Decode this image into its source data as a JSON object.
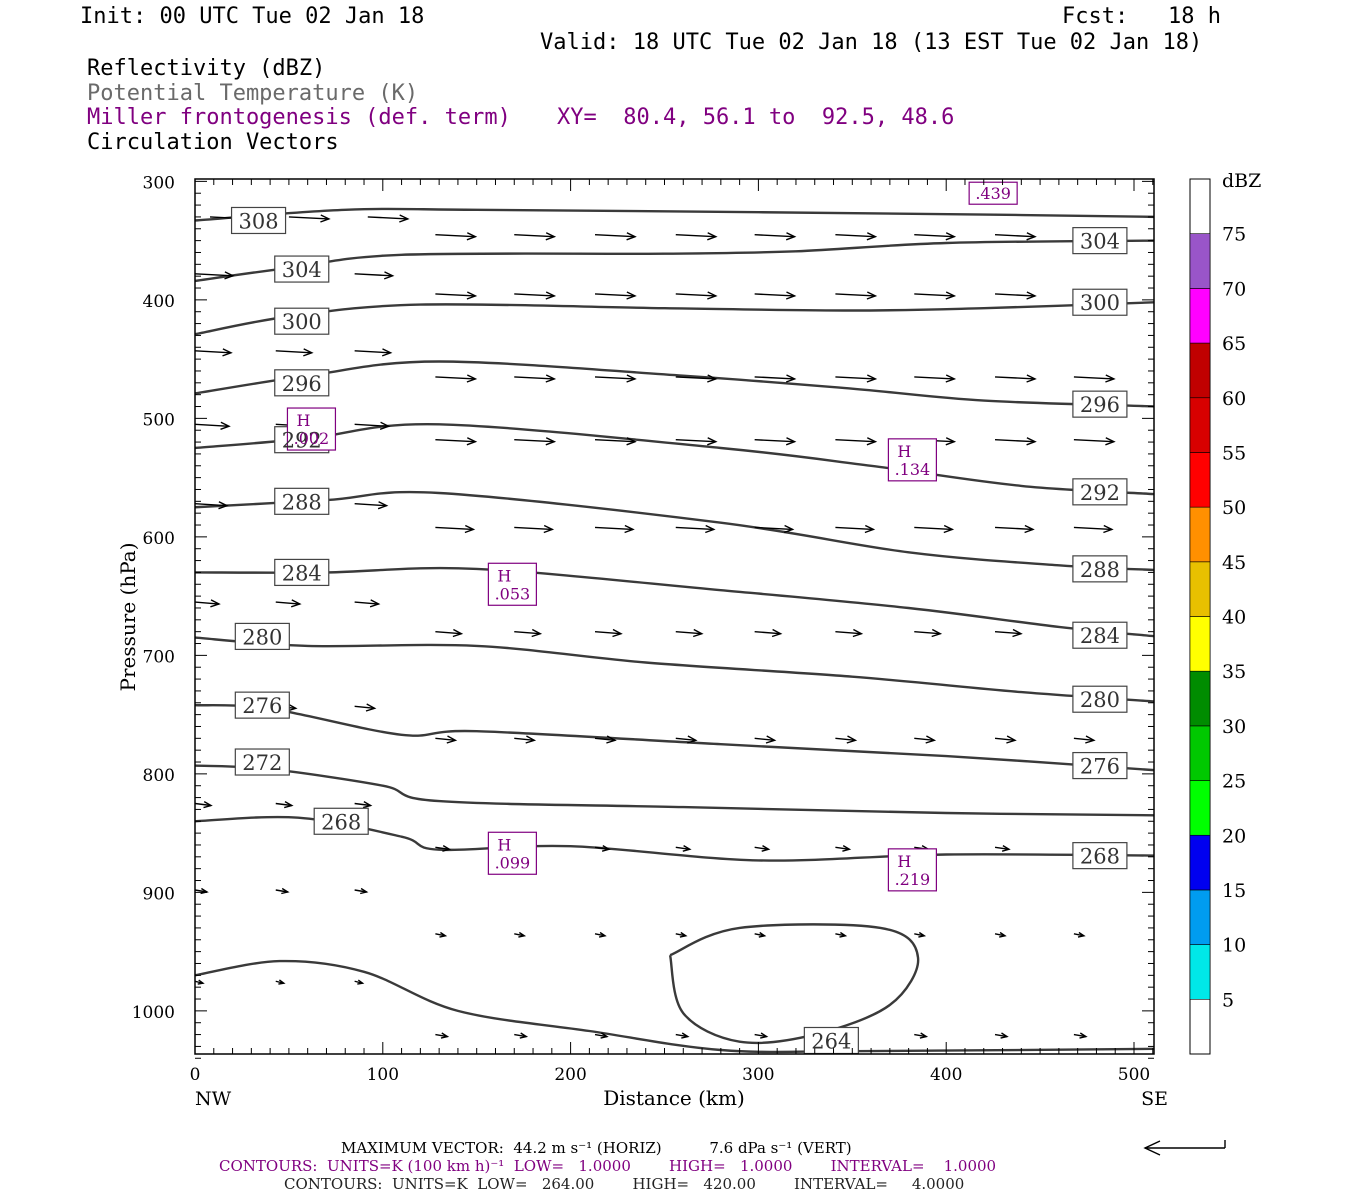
{
  "header": {
    "init": "Init: 00 UTC Tue 02 Jan 18",
    "fcst": "Fcst:   18 h",
    "valid": "Valid: 18 UTC Tue 02 Jan 18 (13 EST Tue 02 Jan 18)",
    "field_1": "Reflectivity (dBZ)",
    "field_2": "Potential Temperature (K)",
    "field_3": "Miller frontogenesis (def. term)",
    "xy": "XY=  80.4, 56.1 to  92.5, 48.6",
    "field_4": "Circulation Vectors"
  },
  "colors": {
    "theta": "#3a3a3a",
    "fronto": "#800080",
    "vector": "#000000"
  },
  "chart_data": {
    "type": "cross-section",
    "xlabel": "Distance (km)",
    "ylabel": "Pressure (hPa)",
    "xlim": [
      0,
      512
    ],
    "ylim": [
      1040,
      300
    ],
    "x_ticks": [
      0,
      100,
      200,
      300,
      400,
      500
    ],
    "y_ticks": [
      300,
      400,
      500,
      600,
      700,
      800,
      900,
      1000
    ],
    "x_end_labels": [
      "NW",
      "SE"
    ],
    "colorbar": {
      "title": "dBZ",
      "labels": [
        "5",
        "10",
        "15",
        "20",
        "25",
        "30",
        "35",
        "40",
        "45",
        "50",
        "55",
        "60",
        "65",
        "70",
        "75"
      ],
      "colors": [
        "#00e8e8",
        "#009cf0",
        "#0000f0",
        "#00ff00",
        "#00c800",
        "#008c00",
        "#ffff00",
        "#e8c000",
        "#ff9000",
        "#ff0000",
        "#d80000",
        "#c00000",
        "#ff00ff",
        "#9955c9"
      ]
    },
    "theta_contours": [
      {
        "value": 308,
        "points": [
          [
            0,
            333
          ],
          [
            80,
            324
          ],
          [
            150,
            324
          ],
          [
            300,
            326
          ],
          [
            420,
            328
          ],
          [
            512,
            330
          ]
        ]
      },
      {
        "value": 304,
        "points": [
          [
            0,
            384
          ],
          [
            50,
            373
          ],
          [
            110,
            362
          ],
          [
            250,
            361
          ],
          [
            320,
            359
          ],
          [
            400,
            352
          ],
          [
            512,
            350
          ]
        ]
      },
      {
        "value": 300,
        "points": [
          [
            0,
            429
          ],
          [
            50,
            414
          ],
          [
            120,
            404
          ],
          [
            250,
            407
          ],
          [
            350,
            409
          ],
          [
            420,
            407
          ],
          [
            512,
            402
          ]
        ]
      },
      {
        "value": 296,
        "points": [
          [
            0,
            479
          ],
          [
            60,
            464
          ],
          [
            130,
            452
          ],
          [
            260,
            464
          ],
          [
            350,
            475
          ],
          [
            420,
            485
          ],
          [
            512,
            490
          ]
        ]
      },
      {
        "value": 292,
        "points": [
          [
            0,
            525
          ],
          [
            60,
            517
          ],
          [
            130,
            505
          ],
          [
            280,
            525
          ],
          [
            360,
            540
          ],
          [
            440,
            557
          ],
          [
            512,
            564
          ]
        ]
      },
      {
        "value": 288,
        "points": [
          [
            0,
            575
          ],
          [
            70,
            569
          ],
          [
            130,
            563
          ],
          [
            280,
            588
          ],
          [
            380,
            613
          ],
          [
            460,
            624
          ],
          [
            512,
            628
          ]
        ]
      },
      {
        "value": 284,
        "points": [
          [
            0,
            630
          ],
          [
            70,
            630
          ],
          [
            150,
            627
          ],
          [
            280,
            645
          ],
          [
            380,
            660
          ],
          [
            460,
            676
          ],
          [
            512,
            684
          ]
        ]
      },
      {
        "value": 280,
        "points": [
          [
            0,
            685
          ],
          [
            60,
            692
          ],
          [
            150,
            692
          ],
          [
            240,
            706
          ],
          [
            350,
            718
          ],
          [
            440,
            731
          ],
          [
            512,
            739
          ]
        ]
      },
      {
        "value": 276,
        "points": [
          [
            0,
            742
          ],
          [
            40,
            745
          ],
          [
            110,
            767
          ],
          [
            150,
            764
          ],
          [
            280,
            775
          ],
          [
            400,
            785
          ],
          [
            512,
            797
          ]
        ]
      },
      {
        "value": 272,
        "points": [
          [
            0,
            793
          ],
          [
            40,
            796
          ],
          [
            100,
            810
          ],
          [
            130,
            823
          ],
          [
            260,
            828
          ],
          [
            400,
            833
          ],
          [
            512,
            835
          ]
        ]
      },
      {
        "value": 268,
        "points": [
          [
            0,
            840
          ],
          [
            55,
            837
          ],
          [
            110,
            853
          ],
          [
            130,
            864
          ],
          [
            200,
            861
          ],
          [
            300,
            873
          ],
          [
            400,
            868
          ],
          [
            512,
            869
          ]
        ]
      },
      {
        "value": 264,
        "points": [
          [
            0,
            970
          ],
          [
            45,
            958
          ],
          [
            90,
            967
          ],
          [
            140,
            1000
          ],
          [
            210,
            1017
          ],
          [
            280,
            1033
          ],
          [
            350,
            1034
          ],
          [
            512,
            1032
          ]
        ]
      },
      {
        "value": 264,
        "points": [
          [
            253,
            953
          ],
          [
            290,
            930
          ],
          [
            365,
            930
          ],
          [
            385,
            955
          ],
          [
            370,
            995
          ],
          [
            330,
            1020
          ],
          [
            290,
            1026
          ],
          [
            260,
            1002
          ],
          [
            253,
            953
          ]
        ]
      }
    ],
    "fronto_maxima": [
      {
        "label": "H",
        "value": ".002",
        "x": 62,
        "p": 509
      },
      {
        "label": "H",
        "value": ".134",
        "x": 382,
        "p": 535
      },
      {
        "label": "H",
        "value": ".053",
        "x": 169,
        "p": 640
      },
      {
        "label": "H",
        "value": ".099",
        "x": 169,
        "p": 867
      },
      {
        "label": "H",
        "value": ".219",
        "x": 382,
        "p": 881
      },
      {
        "label": "",
        "value": ".439",
        "x": 425,
        "p": 310
      }
    ],
    "max_vector": {
      "horiz": "44.2 m s⁻¹ (HORIZ)",
      "vert": "7.6 dPa s⁻¹ (VERT)"
    }
  },
  "footer": {
    "max_vector": "MAXIMUM VECTOR:  44.2 m s⁻¹ (HORIZ)          7.6 dPa s⁻¹ (VERT)",
    "contours_fronto": "CONTOURS:  UNITS=K (100 km h)⁻¹  LOW=   1.0000        HIGH=   1.0000        INTERVAL=    1.0000",
    "contours_theta": "CONTOURS:  UNITS=K  LOW=   264.00        HIGH=   420.00        INTERVAL=     4.0000"
  }
}
